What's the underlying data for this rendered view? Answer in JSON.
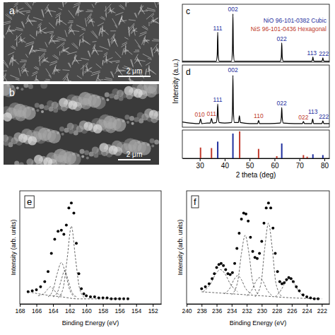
{
  "chart_data": [
    {
      "type": "image",
      "label": "a",
      "scale_bar": "2 μm"
    },
    {
      "type": "image",
      "label": "b",
      "scale_bar": "2 μm"
    },
    {
      "type": "line",
      "x_label": "2 theta (deg)",
      "y_label": "Intensity (a.u.)",
      "xlim": [
        23,
        82
      ],
      "xticks": [
        30,
        40,
        50,
        60,
        70,
        80
      ],
      "tick_labels": "x",
      "legend": "top-right",
      "panels": [
        {
          "label": "c",
          "ylim": [
            0,
            120
          ],
          "series": [
            {
              "color": "#000000",
              "x": [
                23,
                36.6,
                37.0,
                37.2,
                37.4,
                37.8,
                42.7,
                43.1,
                43.3,
                43.5,
                43.9,
                62.3,
                62.7,
                62.9,
                63.1,
                63.5,
                74.8,
                75.2,
                75.4,
                75.6,
                76.0,
                78.8,
                79.2,
                79.4,
                79.6,
                80.0,
                82
              ],
              "values": [
                2,
                2,
                15,
                62,
                15,
                2,
                2,
                22,
                100,
                22,
                2,
                2,
                10,
                40,
                10,
                2,
                2,
                4,
                11,
                4,
                2,
                2,
                4,
                9,
                4,
                2,
                2
              ]
            }
          ],
          "annotations": [
            {
              "x": 37.2,
              "y": 66,
              "text": "111",
              "color": "#1f2f9e"
            },
            {
              "x": 43.3,
              "y": 106,
              "text": "002",
              "color": "#1f2f9e"
            },
            {
              "x": 62.9,
              "y": 44,
              "text": "022",
              "color": "#1f2f9e"
            },
            {
              "x": 75.0,
              "y": 15,
              "text": "113",
              "color": "#1f2f9e"
            },
            {
              "x": 79.8,
              "y": 13,
              "text": "222",
              "color": "#1f2f9e"
            }
          ]
        },
        {
          "label": "d",
          "ylim": [
            0,
            120
          ],
          "series": [
            {
              "color": "#000000",
              "x": [
                23,
                26,
                29,
                29.8,
                30.3,
                30.8,
                33,
                34.2,
                34.7,
                35.2,
                36.6,
                37.0,
                37.2,
                37.4,
                37.8,
                40,
                42.7,
                43.1,
                43.3,
                43.5,
                43.9,
                45.5,
                45.9,
                46.3,
                50,
                53.2,
                53.6,
                54.0,
                58,
                62.3,
                62.7,
                62.9,
                63.1,
                63.5,
                68,
                71.2,
                71.6,
                72.0,
                74.9,
                75.3,
                75.7,
                79.0,
                79.4,
                79.8,
                82
              ],
              "values": [
                10,
                8,
                7,
                7,
                16,
                7,
                8,
                8,
                17,
                8,
                9,
                22,
                45,
                22,
                9,
                8,
                9,
                30,
                100,
                30,
                9,
                9,
                22,
                9,
                7,
                7,
                13,
                7,
                7,
                8,
                18,
                38,
                18,
                8,
                7,
                7,
                11,
                7,
                7,
                16,
                7,
                7,
                12,
                7,
                7
              ]
            }
          ],
          "annotations": [
            {
              "x": 30.0,
              "y": 20,
              "text": "010",
              "color": "#c0392b"
            },
            {
              "x": 34.7,
              "y": 22,
              "text": "011",
              "color": "#c0392b"
            },
            {
              "x": 37.2,
              "y": 49,
              "text": "111",
              "color": "#1f2f9e"
            },
            {
              "x": 43.3,
              "y": 106,
              "text": "002",
              "color": "#1f2f9e"
            },
            {
              "x": 53.6,
              "y": 18,
              "text": "110",
              "color": "#c0392b"
            },
            {
              "x": 62.9,
              "y": 42,
              "text": "022",
              "color": "#1f2f9e"
            },
            {
              "x": 71.6,
              "y": 15,
              "text": "022",
              "color": "#c0392b"
            },
            {
              "x": 75.4,
              "y": 26,
              "text": "113",
              "color": "#1f2f9e"
            },
            {
              "x": 79.8,
              "y": 16,
              "text": "222",
              "color": "#1f2f9e"
            }
          ]
        },
        {
          "ylim": [
            0,
            105
          ],
          "series": [
            {
              "name": "NiO 96-101-0382 Cubic",
              "type": "stem",
              "color": "#1f2f9e",
              "x": [
                37.2,
                43.3,
                62.9,
                75.4,
                79.4
              ],
              "values": [
                62,
                92,
                55,
                15,
                12
              ]
            },
            {
              "name": "NiS 96-101-0436 Hexagonal",
              "type": "stem",
              "color": "#c0392b",
              "x": [
                30.3,
                34.7,
                46.0,
                53.6,
                60.9,
                71.6,
                73.1
              ],
              "values": [
                40,
                38,
                100,
                35,
                8,
                12,
                6
              ]
            }
          ]
        }
      ]
    },
    {
      "type": "scatter",
      "label": "e",
      "x_label": "Binding Energy (eV)",
      "y_label": "Intensity (arb. units)",
      "xlim": [
        168,
        151
      ],
      "xticks": [
        168,
        166,
        164,
        162,
        160,
        158,
        156,
        154,
        152
      ],
      "ylim": [
        0,
        1.12
      ],
      "tick_labels": "x",
      "series": [
        {
          "type": "scatter",
          "marker": "circle",
          "color": "#000000",
          "x": [
            167,
            166.5,
            166,
            165.5,
            165,
            164.6,
            164.2,
            163.8,
            163.4,
            163.0,
            162.7,
            162.4,
            162.1,
            161.8,
            161.5,
            161.2,
            160.9,
            160.6,
            160.3,
            160,
            159.5,
            159,
            158.5,
            158,
            157.5,
            157,
            156.5,
            156,
            155.5,
            155
          ],
          "values": [
            0.12,
            0.13,
            0.14,
            0.17,
            0.22,
            0.32,
            0.5,
            0.64,
            0.72,
            0.73,
            0.69,
            0.78,
            0.95,
            1.0,
            0.9,
            0.6,
            0.3,
            0.15,
            0.1,
            0.08,
            0.07,
            0.07,
            0.06,
            0.06,
            0.06,
            0.05,
            0.05,
            0.05,
            0.05,
            0.05
          ]
        },
        {
          "type": "line",
          "line_style": "dashed",
          "color": "#444444",
          "x": [
            163.4,
            162.8,
            162.3,
            161.8,
            161.3,
            160.8,
            160.2
          ],
          "values": [
            0.06,
            0.15,
            0.45,
            0.77,
            0.45,
            0.15,
            0.06
          ]
        },
        {
          "type": "line",
          "line_style": "dashed",
          "color": "#444444",
          "x": [
            164.6,
            164.0,
            163.5,
            163.0,
            162.5,
            162.0,
            161.4
          ],
          "values": [
            0.07,
            0.14,
            0.3,
            0.41,
            0.3,
            0.14,
            0.07
          ]
        },
        {
          "type": "line",
          "line_style": "dashed",
          "color": "#444444",
          "x": [
            164.0,
            163.4,
            163.0,
            162.6,
            162.2,
            161.8,
            161.2
          ],
          "values": [
            0.07,
            0.13,
            0.24,
            0.33,
            0.24,
            0.13,
            0.07
          ]
        },
        {
          "type": "line",
          "line_style": "dashed",
          "color": "#444444",
          "x": [
            165.8,
            165.0,
            164.6,
            164.3,
            164.0,
            163.6,
            162.8
          ],
          "values": [
            0.08,
            0.11,
            0.15,
            0.17,
            0.15,
            0.11,
            0.08
          ]
        },
        {
          "type": "line",
          "line_style": "dashed",
          "color": "#444444",
          "x": [
            167,
            165,
            163,
            161,
            159,
            155
          ],
          "values": [
            0.12,
            0.09,
            0.07,
            0.05,
            0.05,
            0.05
          ]
        }
      ]
    },
    {
      "type": "scatter",
      "label": "f",
      "x_label": "Binding Energy (eV)",
      "y_label": "Intensity (arb. units)",
      "xlim": [
        240,
        221
      ],
      "xticks": [
        240,
        238,
        236,
        234,
        232,
        230,
        228,
        226,
        224,
        222
      ],
      "ylim": [
        0,
        1.12
      ],
      "tick_labels": "x",
      "series": [
        {
          "type": "scatter",
          "marker": "circle",
          "color": "#000000",
          "x": [
            238,
            237.5,
            237,
            236.6,
            236.3,
            236.0,
            235.7,
            235.4,
            235.1,
            234.8,
            234.5,
            234.2,
            233.9,
            233.6,
            233.3,
            233.0,
            232.7,
            232.4,
            232.1,
            231.8,
            231.5,
            231.2,
            230.9,
            230.6,
            230.3,
            230.0,
            229.7,
            229.4,
            229.1,
            228.8,
            228.5,
            228.2,
            227.9,
            227.6,
            227.3,
            227.0,
            226.7,
            226.4,
            226.1,
            225.8,
            225.4,
            225.0,
            224.5,
            224,
            223.5,
            223,
            222.5
          ],
          "values": [
            0.15,
            0.17,
            0.2,
            0.25,
            0.3,
            0.36,
            0.39,
            0.4,
            0.38,
            0.34,
            0.3,
            0.29,
            0.31,
            0.4,
            0.55,
            0.7,
            0.84,
            0.9,
            0.89,
            0.82,
            0.66,
            0.52,
            0.46,
            0.45,
            0.5,
            0.62,
            0.8,
            0.95,
            1.0,
            0.95,
            0.75,
            0.5,
            0.32,
            0.22,
            0.2,
            0.21,
            0.24,
            0.26,
            0.25,
            0.22,
            0.17,
            0.13,
            0.09,
            0.07,
            0.06,
            0.05,
            0.05
          ]
        },
        {
          "type": "line",
          "line_style": "dashed",
          "color": "#444444",
          "x": [
            230.9,
            230.1,
            229.6,
            229.1,
            228.6,
            228.1,
            227.3
          ],
          "values": [
            0.07,
            0.2,
            0.55,
            0.8,
            0.55,
            0.2,
            0.07
          ]
        },
        {
          "type": "line",
          "line_style": "dashed",
          "color": "#444444",
          "x": [
            234.0,
            233.2,
            232.7,
            232.2,
            231.7,
            231.2,
            230.4
          ],
          "values": [
            0.09,
            0.22,
            0.5,
            0.68,
            0.5,
            0.22,
            0.09
          ]
        },
        {
          "type": "line",
          "line_style": "dashed",
          "color": "#444444",
          "x": [
            235,
            234.2,
            233.7,
            233.2,
            232.7,
            232.2,
            231.4
          ],
          "values": [
            0.1,
            0.16,
            0.24,
            0.28,
            0.24,
            0.16,
            0.1
          ]
        },
        {
          "type": "line",
          "line_style": "dashed",
          "color": "#444444",
          "x": [
            232,
            231.3,
            230.8,
            230.3,
            229.8,
            229.3,
            228.6
          ],
          "values": [
            0.08,
            0.14,
            0.22,
            0.26,
            0.22,
            0.14,
            0.08
          ]
        },
        {
          "type": "line",
          "line_style": "dashed",
          "color": "#444444",
          "x": [
            237.8,
            236.8,
            236.1,
            235.5,
            234.9,
            234.2,
            233.2
          ],
          "values": [
            0.12,
            0.2,
            0.3,
            0.34,
            0.3,
            0.2,
            0.12
          ]
        },
        {
          "type": "line",
          "line_style": "dashed",
          "color": "#444444",
          "x": [
            228.2,
            227.4,
            226.8,
            226.3,
            225.8,
            225.2,
            224.4
          ],
          "values": [
            0.07,
            0.14,
            0.22,
            0.25,
            0.22,
            0.14,
            0.07
          ]
        },
        {
          "type": "line",
          "line_style": "dashed",
          "color": "#444444",
          "x": [
            238,
            234,
            230,
            226,
            222
          ],
          "values": [
            0.12,
            0.1,
            0.08,
            0.06,
            0.05
          ]
        }
      ]
    }
  ]
}
